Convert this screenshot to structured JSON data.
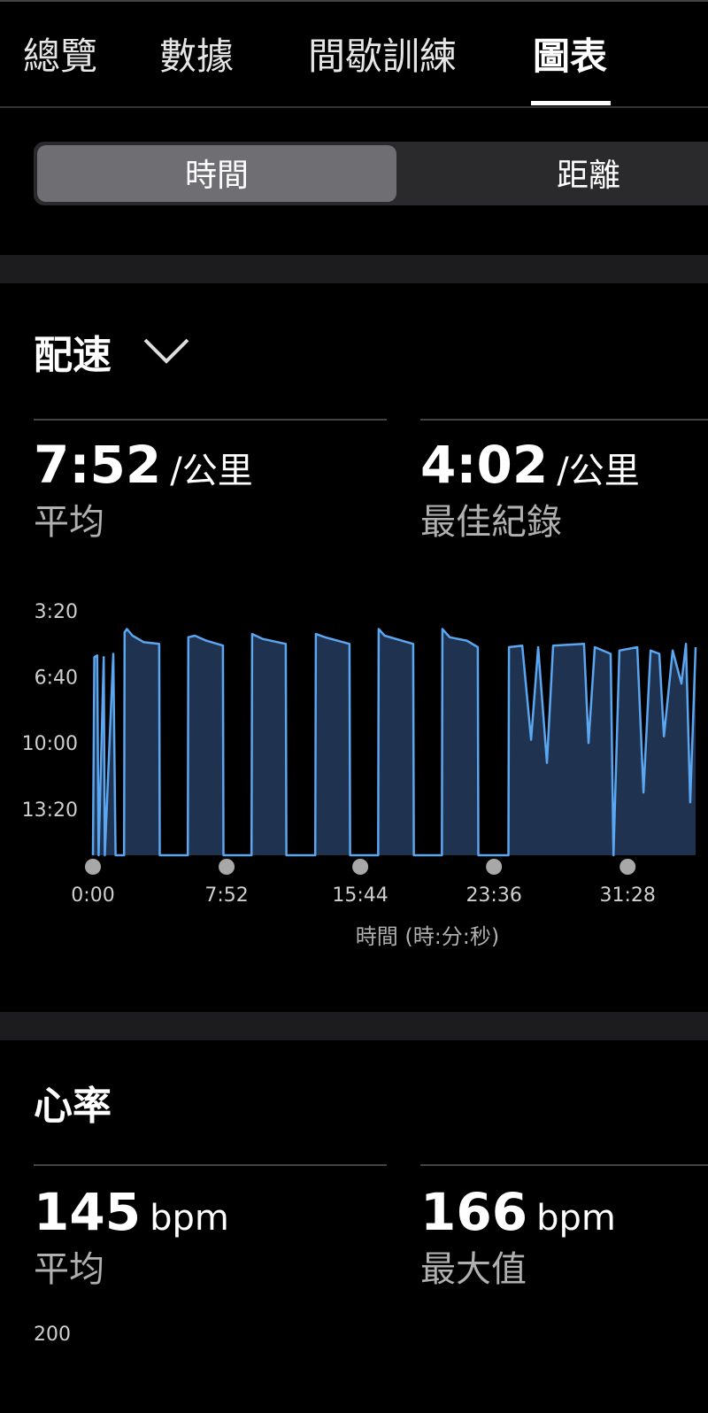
{
  "tabs": [
    "總覽",
    "數據",
    "間歇訓練",
    "圖表"
  ],
  "segments": [
    "時間",
    "距離"
  ],
  "pace": {
    "title": "配速",
    "stats": [
      {
        "value": "7:52",
        "unit": "/公里",
        "label": "平均"
      },
      {
        "value": "4:02",
        "unit": "/公里",
        "label": "最佳紀錄"
      }
    ],
    "chart_data": {
      "type": "area",
      "x_label": "時間 (時:分:秒)",
      "x": [
        0,
        5,
        15,
        20,
        38,
        42,
        72,
        80,
        110,
        112,
        120,
        140,
        180,
        234,
        236,
        335,
        337,
        360,
        400,
        459,
        461,
        560,
        562,
        600,
        681,
        683,
        785,
        787,
        820,
        906,
        908,
        1007,
        1009,
        1030,
        1131,
        1133,
        1232,
        1234,
        1260,
        1320,
        1359,
        1361,
        1467,
        1469,
        1516,
        1547,
        1572,
        1603,
        1625,
        1734,
        1750,
        1772,
        1828,
        1838,
        1859,
        1922,
        1944,
        1969,
        2000,
        2016,
        2047,
        2078,
        2094,
        2109,
        2128
      ],
      "series": [
        {
          "color": "#5aa6f0",
          "values": [
            940,
            340,
            335,
            940,
            340,
            940,
            330,
            940,
            940,
            265,
            255,
            275,
            295,
            300,
            940,
            940,
            280,
            275,
            290,
            305,
            940,
            940,
            270,
            285,
            300,
            940,
            940,
            270,
            280,
            300,
            940,
            940,
            255,
            275,
            300,
            940,
            940,
            255,
            280,
            290,
            310,
            940,
            940,
            310,
            305,
            590,
            310,
            660,
            305,
            300,
            600,
            310,
            330,
            940,
            320,
            310,
            750,
            320,
            330,
            580,
            320,
            420,
            300,
            780,
            310
          ]
        }
      ],
      "xlim": [
        0,
        2128
      ],
      "xticks": [
        {
          "value": 0,
          "label": "0:00"
        },
        {
          "value": 472,
          "label": "7:52"
        },
        {
          "value": 944,
          "label": "15:44"
        },
        {
          "value": 1416,
          "label": "23:36"
        },
        {
          "value": 1888,
          "label": "31:28"
        }
      ],
      "ylim": [
        200,
        940
      ],
      "y_inverted": true,
      "yticks": [
        {
          "value": 200,
          "label": "3:20"
        },
        {
          "value": 400,
          "label": "6:40"
        },
        {
          "value": 600,
          "label": "10:00"
        },
        {
          "value": 800,
          "label": "13:20"
        }
      ],
      "fill": "#1f3350"
    }
  },
  "heart_rate": {
    "title": "心率",
    "stats": [
      {
        "value": "145",
        "unit": "bpm",
        "label": "平均"
      },
      {
        "value": "166",
        "unit": "bpm",
        "label": "最大值"
      }
    ],
    "yticks": [
      "200"
    ]
  }
}
